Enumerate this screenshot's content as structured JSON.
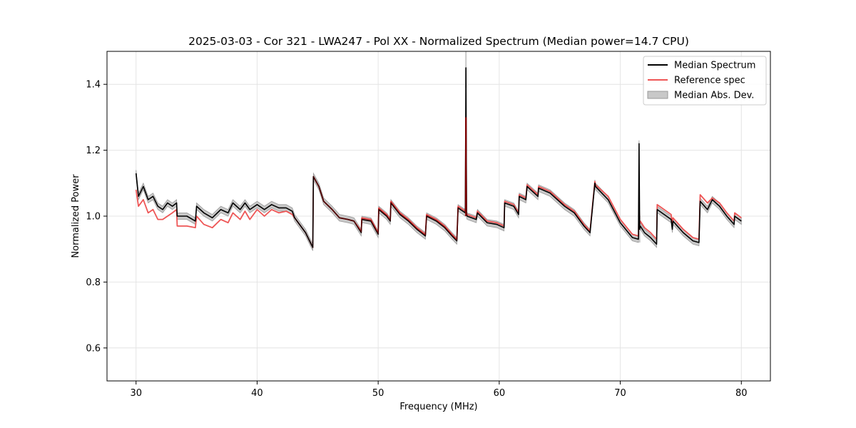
{
  "chart_data": {
    "type": "line",
    "title": "2025-03-03 - Cor 321 - LWA247 - Pol XX - Normalized Spectrum (Median power=14.7 CPU)",
    "xlabel": "Frequency (MHz)",
    "ylabel": "Normalized Power",
    "xlim": [
      27.6,
      82.4
    ],
    "ylim": [
      0.5,
      1.5
    ],
    "xticks": [
      30,
      40,
      50,
      60,
      70,
      80
    ],
    "yticks": [
      0.6,
      0.8,
      1.0,
      1.2,
      1.4
    ],
    "xtick_labels": [
      "30",
      "40",
      "50",
      "60",
      "70",
      "80"
    ],
    "ytick_labels": [
      "0.6",
      "0.8",
      "1.0",
      "1.2",
      "1.4"
    ],
    "grid": true,
    "legend_position": "top-right",
    "legend": [
      "Median Spectrum",
      "Reference spec",
      "Median Abs. Dev."
    ],
    "colors": {
      "median": "#000000",
      "reference": "#ee5555",
      "mad_fill": "#c8c8c8",
      "mad_edge": "#9a9a9a",
      "overlap": "#8b0000",
      "grid": "#e4e4e4"
    },
    "series": [
      {
        "name": "Median Spectrum",
        "x": [
          30.0,
          30.2,
          30.6,
          31.0,
          31.4,
          31.8,
          32.2,
          32.6,
          33.0,
          33.35,
          33.4,
          34.2,
          34.9,
          35.0,
          35.6,
          36.3,
          37.0,
          37.6,
          38.0,
          38.6,
          39.0,
          39.4,
          40.0,
          40.6,
          41.2,
          41.8,
          42.4,
          42.9,
          43.1,
          44.0,
          44.6,
          44.65,
          45.1,
          45.5,
          46.2,
          46.8,
          47.5,
          48.0,
          48.6,
          48.65,
          49.4,
          50.0,
          50.05,
          50.7,
          51.0,
          51.05,
          51.8,
          52.5,
          53.2,
          53.9,
          54.0,
          54.8,
          55.5,
          56.1,
          56.5,
          56.6,
          57.2,
          57.25,
          57.3,
          57.35,
          58.1,
          58.2,
          59.0,
          59.8,
          60.4,
          60.45,
          61.2,
          61.6,
          61.65,
          62.2,
          62.3,
          63.2,
          63.25,
          64.2,
          64.8,
          65.4,
          66.2,
          67.0,
          67.5,
          67.9,
          67.95,
          69.0,
          70.0,
          71.0,
          71.5,
          71.55,
          71.6,
          71.65,
          72.0,
          72.5,
          73.0,
          73.05,
          74.2,
          74.3,
          74.35,
          75.2,
          76.0,
          76.5,
          76.6,
          77.2,
          77.6,
          78.2,
          78.8,
          79.4,
          79.45,
          80.0
        ],
        "y": [
          1.13,
          1.06,
          1.09,
          1.05,
          1.06,
          1.03,
          1.02,
          1.04,
          1.03,
          1.04,
          1.0,
          1.0,
          0.985,
          1.03,
          1.01,
          0.995,
          1.02,
          1.01,
          1.04,
          1.02,
          1.04,
          1.02,
          1.035,
          1.02,
          1.035,
          1.025,
          1.025,
          1.015,
          0.995,
          0.95,
          0.905,
          1.12,
          1.09,
          1.045,
          1.02,
          0.995,
          0.99,
          0.985,
          0.95,
          0.99,
          0.985,
          0.945,
          1.02,
          1.0,
          0.985,
          1.04,
          1.005,
          0.985,
          0.96,
          0.94,
          1.0,
          0.985,
          0.965,
          0.94,
          0.925,
          1.025,
          1.01,
          1.45,
          1.005,
          1.0,
          0.99,
          1.01,
          0.98,
          0.975,
          0.965,
          1.04,
          1.03,
          1.005,
          1.06,
          1.05,
          1.09,
          1.06,
          1.085,
          1.07,
          1.05,
          1.03,
          1.01,
          0.97,
          0.95,
          1.1,
          1.09,
          1.05,
          0.98,
          0.935,
          0.93,
          1.22,
          0.96,
          0.97,
          0.95,
          0.935,
          0.915,
          1.02,
          0.99,
          0.96,
          0.985,
          0.95,
          0.925,
          0.92,
          1.045,
          1.02,
          1.05,
          1.03,
          1.0,
          0.975,
          1.0,
          0.985
        ]
      },
      {
        "name": "Reference spec",
        "x": [
          30.0,
          30.2,
          30.6,
          31.0,
          31.4,
          31.8,
          32.2,
          32.6,
          33.0,
          33.35,
          33.4,
          34.2,
          34.9,
          35.0,
          35.6,
          36.3,
          37.0,
          37.6,
          38.0,
          38.6,
          39.0,
          39.4,
          40.0,
          40.6,
          41.2,
          41.8,
          42.4,
          42.9,
          43.1,
          44.0,
          44.6,
          44.65,
          45.1,
          45.5,
          46.2,
          46.8,
          47.5,
          48.0,
          48.6,
          48.65,
          49.4,
          50.0,
          50.05,
          50.7,
          51.0,
          51.05,
          51.8,
          52.5,
          53.2,
          53.9,
          54.0,
          54.8,
          55.5,
          56.1,
          56.5,
          56.6,
          57.2,
          57.25,
          57.3,
          57.35,
          58.1,
          58.2,
          59.0,
          59.8,
          60.4,
          60.45,
          61.2,
          61.6,
          61.65,
          62.2,
          62.3,
          63.2,
          63.25,
          64.2,
          64.8,
          65.4,
          66.2,
          67.0,
          67.5,
          67.9,
          67.95,
          69.0,
          70.0,
          71.0,
          71.5,
          71.55,
          71.6,
          71.65,
          72.0,
          72.5,
          73.0,
          73.05,
          74.2,
          74.3,
          74.35,
          75.2,
          76.0,
          76.5,
          76.6,
          77.2,
          77.6,
          78.2,
          78.8,
          79.4,
          79.45,
          80.0
        ],
        "y": [
          1.08,
          1.03,
          1.05,
          1.01,
          1.02,
          0.99,
          0.99,
          1.0,
          1.01,
          1.02,
          0.97,
          0.97,
          0.965,
          1.0,
          0.975,
          0.965,
          0.99,
          0.98,
          1.01,
          0.99,
          1.015,
          0.99,
          1.02,
          1.0,
          1.02,
          1.01,
          1.015,
          1.005,
          0.995,
          0.95,
          0.905,
          1.12,
          1.09,
          1.045,
          1.02,
          0.995,
          0.99,
          0.985,
          0.955,
          0.995,
          0.99,
          0.95,
          1.025,
          1.005,
          0.99,
          1.045,
          1.01,
          0.99,
          0.965,
          0.945,
          1.005,
          0.99,
          0.97,
          0.945,
          0.93,
          1.03,
          1.015,
          1.3,
          1.01,
          1.005,
          0.995,
          1.015,
          0.985,
          0.98,
          0.97,
          1.045,
          1.035,
          1.01,
          1.065,
          1.055,
          1.095,
          1.065,
          1.09,
          1.075,
          1.055,
          1.035,
          1.015,
          0.975,
          0.955,
          1.105,
          1.095,
          1.06,
          0.99,
          0.945,
          0.94,
          1.03,
          0.975,
          0.985,
          0.965,
          0.95,
          0.93,
          1.035,
          1.005,
          0.975,
          0.995,
          0.96,
          0.935,
          0.93,
          1.065,
          1.04,
          1.055,
          1.04,
          1.01,
          0.985,
          1.01,
          0.995
        ]
      },
      {
        "name": "Median Abs. Dev.",
        "note": "band of half-width mad around Median Spectrum",
        "mad": 0.01,
        "spike_mad": [
          {
            "x": 57.25,
            "half_width": 0.06
          },
          {
            "x": 71.6,
            "half_width": 0.04
          }
        ]
      }
    ]
  }
}
